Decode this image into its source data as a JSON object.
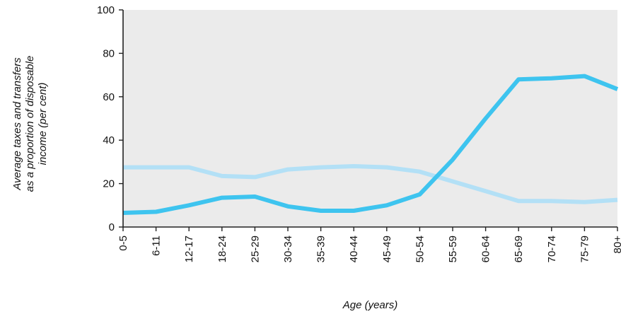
{
  "chart_data": {
    "type": "line",
    "title": "",
    "xlabel": "Age (years)",
    "ylabel_lines": [
      "Average taxes and transfers",
      "as a proportion of disposable",
      "income (per cent)"
    ],
    "categories": [
      "0-5",
      "6-11",
      "12-17",
      "18-24",
      "25-29",
      "30-34",
      "35-39",
      "40-44",
      "45-49",
      "50-54",
      "55-59",
      "60-64",
      "65-69",
      "70-74",
      "75-79",
      "80+"
    ],
    "ylim": [
      0,
      100
    ],
    "yticks": [
      0,
      20,
      40,
      60,
      80,
      100
    ],
    "grid": false,
    "legend": "none",
    "background_color": "#ebebeb",
    "series": [
      {
        "color": "#b3e0f6",
        "values": [
          27.5,
          27.5,
          27.5,
          23.5,
          23,
          26.5,
          27.5,
          28,
          27.5,
          25.5,
          21,
          16.5,
          12,
          12,
          11.5,
          12.5
        ]
      },
      {
        "color": "#3ec4ef",
        "values": [
          6.5,
          7,
          10,
          13.5,
          14,
          9.5,
          7.5,
          7.5,
          10,
          15,
          31,
          50,
          68,
          68.5,
          69.5,
          63.5
        ]
      }
    ]
  }
}
